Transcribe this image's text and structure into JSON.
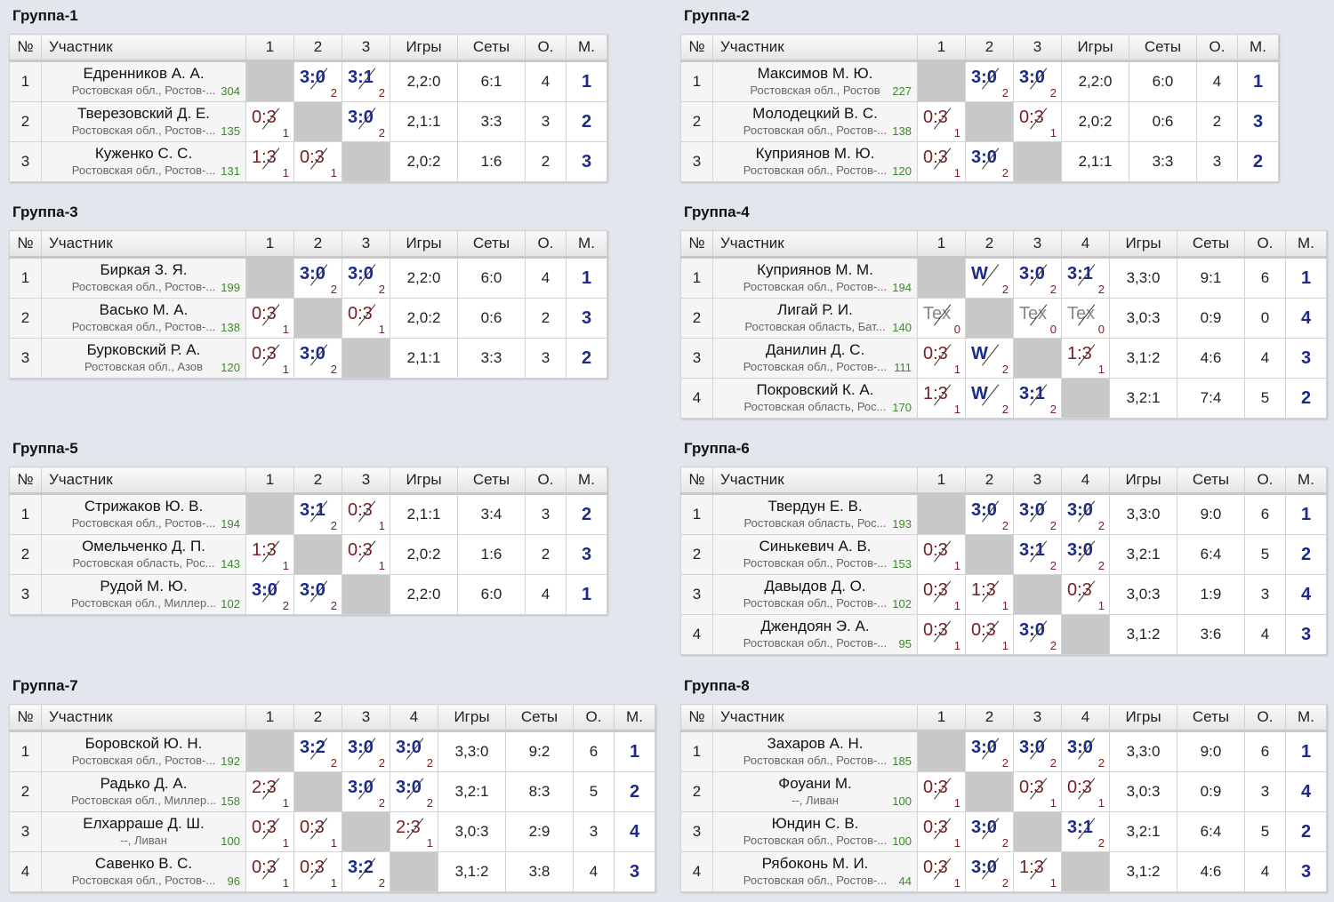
{
  "headers": {
    "num": "№",
    "participant": "Участник",
    "games": "Игры",
    "sets": "Сеты",
    "points": "О.",
    "place": "М."
  },
  "groups": [
    {
      "title": "Группа-1",
      "n": 3,
      "rows": [
        {
          "num": "1",
          "name": "Едренников А. А.",
          "region": "Ростовская обл., Ростов-...",
          "rating": "304",
          "results": [
            null,
            {
              "s": "3:0",
              "r": "2",
              "t": "w"
            },
            {
              "s": "3:1",
              "r": "2",
              "t": "w"
            }
          ],
          "games": "2,2:0",
          "sets": "6:1",
          "points": "4",
          "place": "1"
        },
        {
          "num": "2",
          "name": "Тверезовский Д. Е.",
          "region": "Ростовская обл., Ростов-...",
          "rating": "135",
          "results": [
            {
              "s": "0:3",
              "r": "1",
              "t": "l"
            },
            null,
            {
              "s": "3:0",
              "r": "2",
              "t": "w"
            }
          ],
          "games": "2,1:1",
          "sets": "3:3",
          "points": "3",
          "place": "2"
        },
        {
          "num": "3",
          "name": "Куженко С. С.",
          "region": "Ростовская обл., Ростов-...",
          "rating": "131",
          "results": [
            {
              "s": "1:3",
              "r": "1",
              "t": "l"
            },
            {
              "s": "0:3",
              "r": "1",
              "t": "l"
            },
            null
          ],
          "games": "2,0:2",
          "sets": "1:6",
          "points": "2",
          "place": "3"
        }
      ]
    },
    {
      "title": "Группа-2",
      "n": 3,
      "rows": [
        {
          "num": "1",
          "name": "Максимов М. Ю.",
          "region": "Ростовская обл., Ростов",
          "rating": "227",
          "results": [
            null,
            {
              "s": "3:0",
              "r": "2",
              "t": "w"
            },
            {
              "s": "3:0",
              "r": "2",
              "t": "w"
            }
          ],
          "games": "2,2:0",
          "sets": "6:0",
          "points": "4",
          "place": "1"
        },
        {
          "num": "2",
          "name": "Молодецкий В. С.",
          "region": "Ростовская обл., Ростов-...",
          "rating": "138",
          "results": [
            {
              "s": "0:3",
              "r": "1",
              "t": "l"
            },
            null,
            {
              "s": "0:3",
              "r": "1",
              "t": "l"
            }
          ],
          "games": "2,0:2",
          "sets": "0:6",
          "points": "2",
          "place": "3"
        },
        {
          "num": "3",
          "name": "Куприянов М. Ю.",
          "region": "Ростовская обл., Ростов-...",
          "rating": "120",
          "results": [
            {
              "s": "0:3",
              "r": "1",
              "t": "l"
            },
            {
              "s": "3:0",
              "r": "2",
              "t": "w"
            },
            null
          ],
          "games": "2,1:1",
          "sets": "3:3",
          "points": "3",
          "place": "2"
        }
      ]
    },
    {
      "title": "Группа-3",
      "n": 3,
      "rows": [
        {
          "num": "1",
          "name": "Биркая З. Я.",
          "region": "Ростовская обл., Ростов-...",
          "rating": "199",
          "results": [
            null,
            {
              "s": "3:0",
              "r": "2",
              "t": "w"
            },
            {
              "s": "3:0",
              "r": "2",
              "t": "w"
            }
          ],
          "games": "2,2:0",
          "sets": "6:0",
          "points": "4",
          "place": "1"
        },
        {
          "num": "2",
          "name": "Васько М. А.",
          "region": "Ростовская обл., Ростов-...",
          "rating": "138",
          "results": [
            {
              "s": "0:3",
              "r": "1",
              "t": "l"
            },
            null,
            {
              "s": "0:3",
              "r": "1",
              "t": "l"
            }
          ],
          "games": "2,0:2",
          "sets": "0:6",
          "points": "2",
          "place": "3"
        },
        {
          "num": "3",
          "name": "Бурковский Р. А.",
          "region": "Ростовская обл., Азов",
          "rating": "120",
          "results": [
            {
              "s": "0:3",
              "r": "1",
              "t": "l"
            },
            {
              "s": "3:0",
              "r": "2",
              "t": "w"
            },
            null
          ],
          "games": "2,1:1",
          "sets": "3:3",
          "points": "3",
          "place": "2"
        }
      ]
    },
    {
      "title": "Группа-4",
      "n": 4,
      "rows": [
        {
          "num": "1",
          "name": "Куприянов М. М.",
          "region": "Ростовская обл., Ростов-...",
          "rating": "194",
          "results": [
            null,
            {
              "s": "W",
              "r": "2",
              "t": "w"
            },
            {
              "s": "3:0",
              "r": "2",
              "t": "w"
            },
            {
              "s": "3:1",
              "r": "2",
              "t": "w"
            }
          ],
          "games": "3,3:0",
          "sets": "9:1",
          "points": "6",
          "place": "1"
        },
        {
          "num": "2",
          "name": "Лигай Р. И.",
          "region": "Ростовская область, Бат...",
          "rating": "140",
          "results": [
            {
              "s": "Tex",
              "r": "0",
              "t": "x"
            },
            null,
            {
              "s": "Tex",
              "r": "0",
              "t": "x"
            },
            {
              "s": "Tex",
              "r": "0",
              "t": "x"
            }
          ],
          "games": "3,0:3",
          "sets": "0:9",
          "points": "0",
          "place": "4"
        },
        {
          "num": "3",
          "name": "Данилин Д. С.",
          "region": "Ростовская обл., Ростов-...",
          "rating": "111",
          "results": [
            {
              "s": "0:3",
              "r": "1",
              "t": "l"
            },
            {
              "s": "W",
              "r": "2",
              "t": "w"
            },
            null,
            {
              "s": "1:3",
              "r": "1",
              "t": "l"
            }
          ],
          "games": "3,1:2",
          "sets": "4:6",
          "points": "4",
          "place": "3"
        },
        {
          "num": "4",
          "name": "Покровский К. А.",
          "region": "Ростовская область, Рос...",
          "rating": "170",
          "results": [
            {
              "s": "1:3",
              "r": "1",
              "t": "l"
            },
            {
              "s": "W",
              "r": "2",
              "t": "w"
            },
            {
              "s": "3:1",
              "r": "2",
              "t": "w"
            },
            null
          ],
          "games": "3,2:1",
          "sets": "7:4",
          "points": "5",
          "place": "2"
        }
      ]
    },
    {
      "title": "Группа-5",
      "n": 3,
      "rows": [
        {
          "num": "1",
          "name": "Стрижаков Ю. В.",
          "region": "Ростовская обл., Ростов-...",
          "rating": "194",
          "results": [
            null,
            {
              "s": "3:1",
              "r": "2",
              "t": "w"
            },
            {
              "s": "0:3",
              "r": "1",
              "t": "l"
            }
          ],
          "games": "2,1:1",
          "sets": "3:4",
          "points": "3",
          "place": "2"
        },
        {
          "num": "2",
          "name": "Омельченко Д. П.",
          "region": "Ростовская область, Рос...",
          "rating": "143",
          "results": [
            {
              "s": "1:3",
              "r": "1",
              "t": "l"
            },
            null,
            {
              "s": "0:3",
              "r": "1",
              "t": "l"
            }
          ],
          "games": "2,0:2",
          "sets": "1:6",
          "points": "2",
          "place": "3"
        },
        {
          "num": "3",
          "name": "Рудой М. Ю.",
          "region": "Ростовская обл., Миллер...",
          "rating": "102",
          "results": [
            {
              "s": "3:0",
              "r": "2",
              "t": "w"
            },
            {
              "s": "3:0",
              "r": "2",
              "t": "w"
            },
            null
          ],
          "games": "2,2:0",
          "sets": "6:0",
          "points": "4",
          "place": "1"
        }
      ]
    },
    {
      "title": "Группа-6",
      "n": 4,
      "rows": [
        {
          "num": "1",
          "name": "Твердун Е. В.",
          "region": "Ростовская область, Рос...",
          "rating": "193",
          "results": [
            null,
            {
              "s": "3:0",
              "r": "2",
              "t": "w"
            },
            {
              "s": "3:0",
              "r": "2",
              "t": "w"
            },
            {
              "s": "3:0",
              "r": "2",
              "t": "w"
            }
          ],
          "games": "3,3:0",
          "sets": "9:0",
          "points": "6",
          "place": "1"
        },
        {
          "num": "2",
          "name": "Синькевич А. В.",
          "region": "Ростовская обл., Ростов-...",
          "rating": "153",
          "results": [
            {
              "s": "0:3",
              "r": "1",
              "t": "l"
            },
            null,
            {
              "s": "3:1",
              "r": "2",
              "t": "w"
            },
            {
              "s": "3:0",
              "r": "2",
              "t": "w"
            }
          ],
          "games": "3,2:1",
          "sets": "6:4",
          "points": "5",
          "place": "2"
        },
        {
          "num": "3",
          "name": "Давыдов Д. О.",
          "region": "Ростовская обл., Ростов-...",
          "rating": "102",
          "results": [
            {
              "s": "0:3",
              "r": "1",
              "t": "l"
            },
            {
              "s": "1:3",
              "r": "1",
              "t": "l"
            },
            null,
            {
              "s": "0:3",
              "r": "1",
              "t": "l"
            }
          ],
          "games": "3,0:3",
          "sets": "1:9",
          "points": "3",
          "place": "4"
        },
        {
          "num": "4",
          "name": "Джендоян Э. А.",
          "region": "Ростовская обл., Ростов-...",
          "rating": "95",
          "results": [
            {
              "s": "0:3",
              "r": "1",
              "t": "l"
            },
            {
              "s": "0:3",
              "r": "1",
              "t": "l"
            },
            {
              "s": "3:0",
              "r": "2",
              "t": "w"
            },
            null
          ],
          "games": "3,1:2",
          "sets": "3:6",
          "points": "4",
          "place": "3"
        }
      ]
    },
    {
      "title": "Группа-7",
      "n": 4,
      "rows": [
        {
          "num": "1",
          "name": "Боровской Ю. Н.",
          "region": "Ростовская обл., Ростов-...",
          "rating": "192",
          "results": [
            null,
            {
              "s": "3:2",
              "r": "2",
              "t": "w"
            },
            {
              "s": "3:0",
              "r": "2",
              "t": "w"
            },
            {
              "s": "3:0",
              "r": "2",
              "t": "w"
            }
          ],
          "games": "3,3:0",
          "sets": "9:2",
          "points": "6",
          "place": "1"
        },
        {
          "num": "2",
          "name": "Радько Д. А.",
          "region": "Ростовская обл., Миллер...",
          "rating": "158",
          "results": [
            {
              "s": "2:3",
              "r": "1",
              "t": "l"
            },
            null,
            {
              "s": "3:0",
              "r": "2",
              "t": "w"
            },
            {
              "s": "3:0",
              "r": "2",
              "t": "w"
            }
          ],
          "games": "3,2:1",
          "sets": "8:3",
          "points": "5",
          "place": "2"
        },
        {
          "num": "3",
          "name": "Елхарраше Д. Ш.",
          "region": "--, Ливан",
          "rating": "100",
          "results": [
            {
              "s": "0:3",
              "r": "1",
              "t": "l"
            },
            {
              "s": "0:3",
              "r": "1",
              "t": "l"
            },
            null,
            {
              "s": "2:3",
              "r": "1",
              "t": "l"
            }
          ],
          "games": "3,0:3",
          "sets": "2:9",
          "points": "3",
          "place": "4"
        },
        {
          "num": "4",
          "name": "Савенко В. С.",
          "region": "Ростовская обл., Ростов-...",
          "rating": "96",
          "results": [
            {
              "s": "0:3",
              "r": "1",
              "t": "l"
            },
            {
              "s": "0:3",
              "r": "1",
              "t": "l"
            },
            {
              "s": "3:2",
              "r": "2",
              "t": "w"
            },
            null
          ],
          "games": "3,1:2",
          "sets": "3:8",
          "points": "4",
          "place": "3"
        }
      ]
    },
    {
      "title": "Группа-8",
      "n": 4,
      "rows": [
        {
          "num": "1",
          "name": "Захаров А. Н.",
          "region": "Ростовская обл., Ростов-...",
          "rating": "185",
          "results": [
            null,
            {
              "s": "3:0",
              "r": "2",
              "t": "w"
            },
            {
              "s": "3:0",
              "r": "2",
              "t": "w"
            },
            {
              "s": "3:0",
              "r": "2",
              "t": "w"
            }
          ],
          "games": "3,3:0",
          "sets": "9:0",
          "points": "6",
          "place": "1"
        },
        {
          "num": "2",
          "name": "Фоуани М.",
          "region": "--, Ливан",
          "rating": "100",
          "results": [
            {
              "s": "0:3",
              "r": "1",
              "t": "l"
            },
            null,
            {
              "s": "0:3",
              "r": "1",
              "t": "l"
            },
            {
              "s": "0:3",
              "r": "1",
              "t": "l"
            }
          ],
          "games": "3,0:3",
          "sets": "0:9",
          "points": "3",
          "place": "4"
        },
        {
          "num": "3",
          "name": "Юндин С. В.",
          "region": "Ростовская обл., Ростов-...",
          "rating": "100",
          "results": [
            {
              "s": "0:3",
              "r": "1",
              "t": "l"
            },
            {
              "s": "3:0",
              "r": "2",
              "t": "w"
            },
            null,
            {
              "s": "3:1",
              "r": "2",
              "t": "w"
            }
          ],
          "games": "3,2:1",
          "sets": "6:4",
          "points": "5",
          "place": "2"
        },
        {
          "num": "4",
          "name": "Рябоконь М. И.",
          "region": "Ростовская обл., Ростов-...",
          "rating": "44",
          "results": [
            {
              "s": "0:3",
              "r": "1",
              "t": "l"
            },
            {
              "s": "3:0",
              "r": "2",
              "t": "w"
            },
            {
              "s": "1:3",
              "r": "1",
              "t": "l"
            },
            null
          ],
          "games": "3,1:2",
          "sets": "4:6",
          "points": "4",
          "place": "3"
        }
      ]
    }
  ]
}
